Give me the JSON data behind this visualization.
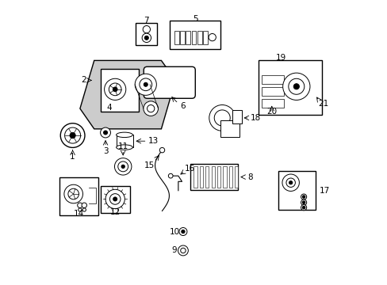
{
  "background_color": "#ffffff",
  "line_color": "#000000",
  "lw_thin": 0.7,
  "lw_med": 1.0
}
